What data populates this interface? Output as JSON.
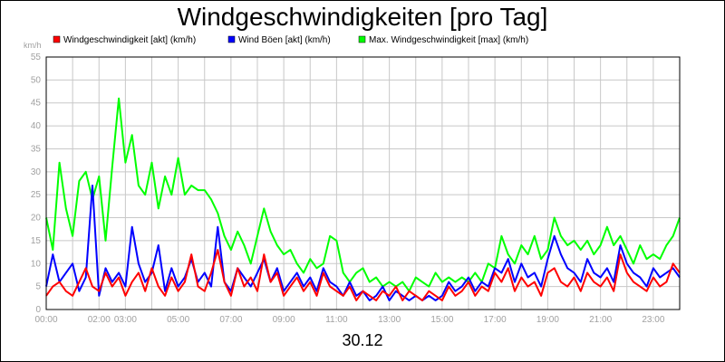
{
  "chart_data": {
    "type": "line",
    "title": "Windgeschwindigkeiten [pro Tag]",
    "xlabel": "30.12",
    "ylabel": "km/h",
    "ylim": [
      0,
      55
    ],
    "y_ticks": [
      "0",
      "5",
      "10",
      "15",
      "20",
      "25",
      "30",
      "35",
      "40",
      "45",
      "50",
      "55"
    ],
    "x_ticks": [
      "00:00",
      "02:00",
      "03:00",
      "05:00",
      "07:00",
      "09:00",
      "11:00",
      "13:00",
      "15:00",
      "17:00",
      "19:00",
      "21:00",
      "23:00"
    ],
    "x_tick_hours": [
      0,
      2,
      3,
      5,
      7,
      9,
      11,
      13,
      15,
      17,
      19,
      21,
      23
    ],
    "x_range_hours": [
      0,
      24
    ],
    "grid": true,
    "legend_position": "top",
    "colors": {
      "wind": "#ff0000",
      "gust": "#0000ff",
      "max": "#00ff00"
    },
    "series": [
      {
        "name": "Windgeschwindigkeit [akt] (km/h)",
        "color": "#ff0000",
        "hours": [
          0,
          0.25,
          0.5,
          0.75,
          1,
          1.25,
          1.5,
          1.75,
          2,
          2.25,
          2.5,
          2.75,
          3,
          3.25,
          3.5,
          3.75,
          4,
          4.25,
          4.5,
          4.75,
          5,
          5.25,
          5.5,
          5.75,
          6,
          6.25,
          6.5,
          6.75,
          7,
          7.25,
          7.5,
          7.75,
          8,
          8.25,
          8.5,
          8.75,
          9,
          9.25,
          9.5,
          9.75,
          10,
          10.25,
          10.5,
          10.75,
          11,
          11.25,
          11.5,
          11.75,
          12,
          12.25,
          12.5,
          12.75,
          13,
          13.25,
          13.5,
          13.75,
          14,
          14.25,
          14.5,
          14.75,
          15,
          15.25,
          15.5,
          15.75,
          16,
          16.25,
          16.5,
          16.75,
          17,
          17.25,
          17.5,
          17.75,
          18,
          18.25,
          18.5,
          18.75,
          19,
          19.25,
          19.5,
          19.75,
          20,
          20.25,
          20.5,
          20.75,
          21,
          21.25,
          21.5,
          21.75,
          22,
          22.25,
          22.5,
          22.75,
          23,
          23.25,
          23.5,
          23.75,
          24
        ],
        "values": [
          3,
          5,
          6,
          4,
          3,
          6,
          9,
          5,
          4,
          8,
          5,
          7,
          3,
          6,
          8,
          4,
          9,
          5,
          3,
          7,
          4,
          6,
          12,
          5,
          4,
          8,
          13,
          6,
          3,
          9,
          5,
          7,
          4,
          12,
          6,
          8,
          3,
          5,
          7,
          4,
          6,
          3,
          8,
          5,
          4,
          3,
          5,
          2,
          4,
          3,
          2,
          4,
          3,
          5,
          2,
          4,
          3,
          2,
          4,
          3,
          2,
          5,
          3,
          4,
          6,
          3,
          5,
          4,
          8,
          6,
          9,
          4,
          7,
          5,
          6,
          3,
          8,
          9,
          6,
          5,
          7,
          4,
          8,
          6,
          5,
          7,
          4,
          12,
          8,
          6,
          5,
          4,
          7,
          5,
          6,
          10,
          8
        ]
      },
      {
        "name": "Wind Böen [akt] (km/h)",
        "color": "#0000ff",
        "hours": [
          0,
          0.25,
          0.5,
          0.75,
          1,
          1.25,
          1.5,
          1.75,
          2,
          2.25,
          2.5,
          2.75,
          3,
          3.25,
          3.5,
          3.75,
          4,
          4.25,
          4.5,
          4.75,
          5,
          5.25,
          5.5,
          5.75,
          6,
          6.25,
          6.5,
          6.75,
          7,
          7.25,
          7.5,
          7.75,
          8,
          8.25,
          8.5,
          8.75,
          9,
          9.25,
          9.5,
          9.75,
          10,
          10.25,
          10.5,
          10.75,
          11,
          11.25,
          11.5,
          11.75,
          12,
          12.25,
          12.5,
          12.75,
          13,
          13.25,
          13.5,
          13.75,
          14,
          14.25,
          14.5,
          14.75,
          15,
          15.25,
          15.5,
          15.75,
          16,
          16.25,
          16.5,
          16.75,
          17,
          17.25,
          17.5,
          17.75,
          18,
          18.25,
          18.5,
          18.75,
          19,
          19.25,
          19.5,
          19.75,
          20,
          20.25,
          20.5,
          20.75,
          21,
          21.25,
          21.5,
          21.75,
          22,
          22.25,
          22.5,
          22.75,
          23,
          23.25,
          23.5,
          23.75,
          24
        ],
        "values": [
          5,
          12,
          6,
          8,
          10,
          4,
          7,
          27,
          3,
          9,
          6,
          8,
          5,
          18,
          10,
          6,
          8,
          14,
          4,
          9,
          5,
          7,
          11,
          6,
          8,
          5,
          18,
          6,
          4,
          9,
          7,
          5,
          8,
          11,
          6,
          9,
          4,
          6,
          8,
          5,
          7,
          4,
          9,
          6,
          5,
          3,
          6,
          3,
          4,
          2,
          3,
          5,
          2,
          4,
          3,
          2,
          3,
          2,
          3,
          2,
          3,
          6,
          4,
          5,
          7,
          4,
          6,
          5,
          9,
          8,
          11,
          6,
          10,
          7,
          8,
          5,
          11,
          16,
          12,
          9,
          8,
          6,
          11,
          8,
          7,
          9,
          6,
          14,
          10,
          8,
          7,
          5,
          9,
          7,
          8,
          9,
          7
        ]
      },
      {
        "name": "Max. Windgeschwindigkeit [max] (km/h)",
        "color": "#00ff00",
        "hours": [
          0,
          0.25,
          0.5,
          0.75,
          1,
          1.25,
          1.5,
          1.75,
          2,
          2.25,
          2.5,
          2.75,
          3,
          3.25,
          3.5,
          3.75,
          4,
          4.25,
          4.5,
          4.75,
          5,
          5.25,
          5.5,
          5.75,
          6,
          6.25,
          6.5,
          6.75,
          7,
          7.25,
          7.5,
          7.75,
          8,
          8.25,
          8.5,
          8.75,
          9,
          9.25,
          9.5,
          9.75,
          10,
          10.25,
          10.5,
          10.75,
          11,
          11.25,
          11.5,
          11.75,
          12,
          12.25,
          12.5,
          12.75,
          13,
          13.25,
          13.5,
          13.75,
          14,
          14.25,
          14.5,
          14.75,
          15,
          15.25,
          15.5,
          15.75,
          16,
          16.25,
          16.5,
          16.75,
          17,
          17.25,
          17.5,
          17.75,
          18,
          18.25,
          18.5,
          18.75,
          19,
          19.25,
          19.5,
          19.75,
          20,
          20.25,
          20.5,
          20.75,
          21,
          21.25,
          21.5,
          21.75,
          22,
          22.25,
          22.5,
          22.75,
          23,
          23.25,
          23.5,
          23.75,
          24
        ],
        "values": [
          20,
          13,
          32,
          22,
          16,
          28,
          30,
          24,
          29,
          15,
          31,
          46,
          32,
          38,
          27,
          25,
          32,
          22,
          29,
          25,
          33,
          25,
          27,
          26,
          26,
          24,
          21,
          16,
          13,
          17,
          14,
          10,
          16,
          22,
          17,
          14,
          12,
          13,
          10,
          8,
          11,
          9,
          10,
          16,
          15,
          8,
          6,
          8,
          9,
          6,
          7,
          5,
          6,
          5,
          6,
          4,
          7,
          6,
          5,
          8,
          6,
          7,
          6,
          7,
          6,
          8,
          6,
          10,
          9,
          16,
          12,
          10,
          14,
          12,
          16,
          11,
          13,
          20,
          16,
          14,
          15,
          13,
          15,
          12,
          14,
          18,
          14,
          16,
          13,
          10,
          14,
          11,
          12,
          11,
          14,
          16,
          20
        ]
      }
    ]
  }
}
